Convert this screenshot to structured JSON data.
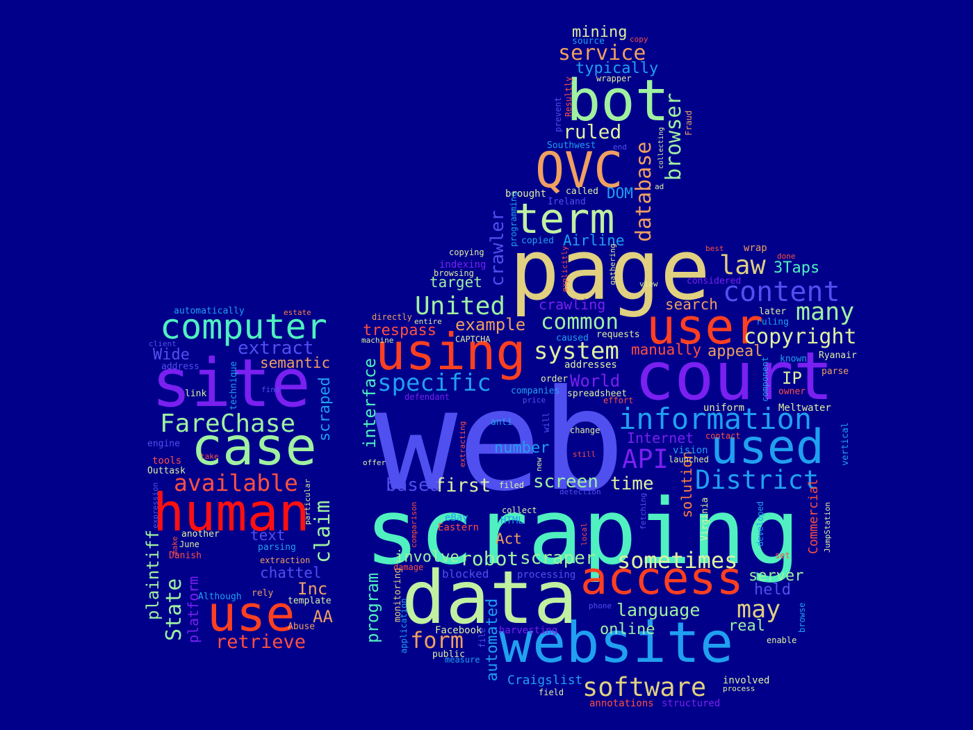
{
  "colors": {
    "background": "#00008b"
  },
  "words": [
    {
      "id": "web",
      "text": "web",
      "color": "#5050f0"
    },
    {
      "id": "scraping",
      "text": "scraping",
      "color": "#50f0c0"
    },
    {
      "id": "page",
      "text": "page",
      "color": "#e0d080"
    },
    {
      "id": "data",
      "text": "data",
      "color": "#c0f0a0"
    },
    {
      "id": "site",
      "text": "site",
      "color": "#7a20f0"
    },
    {
      "id": "court",
      "text": "court",
      "color": "#7a20f0"
    },
    {
      "id": "website",
      "text": "website",
      "color": "#20a0f0"
    },
    {
      "id": "bot",
      "text": "bot",
      "color": "#a0f0a0"
    },
    {
      "id": "human",
      "text": "human",
      "color": "#ff1010"
    },
    {
      "id": "case",
      "text": "case",
      "color": "#a0f0a0"
    },
    {
      "id": "use",
      "text": "use",
      "color": "#ff4020"
    },
    {
      "id": "using",
      "text": "using",
      "color": "#ff4020"
    },
    {
      "id": "user",
      "text": "user",
      "color": "#ff4020"
    },
    {
      "id": "access",
      "text": "access",
      "color": "#ff4020"
    },
    {
      "id": "used",
      "text": "used",
      "color": "#20a0f0"
    },
    {
      "id": "QVC",
      "text": "QVC",
      "color": "#f0a060"
    },
    {
      "id": "term",
      "text": "term",
      "color": "#c0f0a0"
    },
    {
      "id": "computer",
      "text": "computer",
      "color": "#50f0c0"
    },
    {
      "id": "information",
      "text": "information",
      "color": "#20a0f0"
    },
    {
      "id": "software",
      "text": "software",
      "color": "#e0d080"
    },
    {
      "id": "content",
      "text": "content",
      "color": "#5050f0"
    },
    {
      "id": "District",
      "text": "District",
      "color": "#20a0f0"
    },
    {
      "id": "United",
      "text": "United",
      "color": "#a0f0a0"
    },
    {
      "id": "specific",
      "text": "specific",
      "color": "#20a0f0"
    },
    {
      "id": "FareChase",
      "text": "FareChase",
      "color": "#a0f0a0"
    },
    {
      "id": "available",
      "text": "available",
      "color": "#ff5040"
    },
    {
      "id": "API",
      "text": "API",
      "color": "#7a20f0"
    },
    {
      "id": "law",
      "text": "law",
      "color": "#e0d080"
    },
    {
      "id": "many",
      "text": "many",
      "color": "#a0f0a0"
    },
    {
      "id": "system",
      "text": "system",
      "color": "#e0f0a0"
    },
    {
      "id": "copyright",
      "text": "copyright",
      "color": "#e0f0a0"
    },
    {
      "id": "sometimes",
      "text": "sometimes",
      "color": "#e0f0a0"
    },
    {
      "id": "may",
      "text": "may",
      "color": "#e0d080"
    },
    {
      "id": "common",
      "text": "common",
      "color": "#a0f0a0"
    },
    {
      "id": "database",
      "text": "database",
      "color": "#f0a060"
    },
    {
      "id": "browser",
      "text": "browser",
      "color": "#a0f0a0"
    },
    {
      "id": "crawler",
      "text": "crawler",
      "color": "#5050f0"
    },
    {
      "id": "claim",
      "text": "claim",
      "color": "#a0f0a0"
    },
    {
      "id": "State",
      "text": "State",
      "color": "#a0f0a0"
    },
    {
      "id": "retrieve",
      "text": "retrieve",
      "color": "#ff5040"
    },
    {
      "id": "extract",
      "text": "extract",
      "color": "#5050f0"
    },
    {
      "id": "semantic",
      "text": "semantic",
      "color": "#f0a060"
    },
    {
      "id": "scraped",
      "text": "scraped",
      "color": "#20a0f0"
    },
    {
      "id": "plaintiff",
      "text": "plaintiff",
      "color": "#a0f0a0"
    },
    {
      "id": "platform",
      "text": "platform",
      "color": "#7a20f0"
    },
    {
      "id": "Wide",
      "text": "Wide",
      "color": "#5050f0"
    },
    {
      "id": "text",
      "text": "text",
      "color": "#5050f0"
    },
    {
      "id": "chattel",
      "text": "chattel",
      "color": "#5050f0"
    },
    {
      "id": "Inc",
      "text": "Inc",
      "color": "#f0a060"
    },
    {
      "id": "AA",
      "text": "AA",
      "color": "#f0a060"
    },
    {
      "id": "service",
      "text": "service",
      "color": "#f0a060"
    },
    {
      "id": "mining",
      "text": "mining",
      "color": "#e0f0a0"
    },
    {
      "id": "typically",
      "text": "typically",
      "color": "#20a0f0"
    },
    {
      "id": "ruled",
      "text": "ruled",
      "color": "#e0f0a0"
    },
    {
      "id": "DOM",
      "text": "DOM",
      "color": "#20a0f0"
    },
    {
      "id": "Airline",
      "text": "Airline",
      "color": "#20a0f0"
    },
    {
      "id": "example",
      "text": "example",
      "color": "#f0a060"
    },
    {
      "id": "trespass",
      "text": "trespass",
      "color": "#ff5040"
    },
    {
      "id": "target",
      "text": "target",
      "color": "#a0f0a0"
    },
    {
      "id": "crawling",
      "text": "crawling",
      "color": "#7a20f0"
    },
    {
      "id": "search",
      "text": "search",
      "color": "#f0a060"
    },
    {
      "id": "3Taps",
      "text": "3Taps",
      "color": "#50f0c0"
    },
    {
      "id": "manually",
      "text": "manually",
      "color": "#ff5040"
    },
    {
      "id": "appeal",
      "text": "appeal",
      "color": "#f0a060"
    },
    {
      "id": "World",
      "text": "World",
      "color": "#7a20f0"
    },
    {
      "id": "Internet",
      "text": "Internet",
      "color": "#7a20f0"
    },
    {
      "id": "IP",
      "text": "IP",
      "color": "#e0f0a0"
    },
    {
      "id": "interface",
      "text": "interface",
      "color": "#50f0c0"
    },
    {
      "id": "number",
      "text": "number",
      "color": "#20a0f0"
    },
    {
      "id": "first",
      "text": "first",
      "color": "#e0f0a0"
    },
    {
      "id": "based",
      "text": "based",
      "color": "#5050f0"
    },
    {
      "id": "screen",
      "text": "screen",
      "color": "#a0f0a0"
    },
    {
      "id": "time",
      "text": "time",
      "color": "#e0f0a0"
    },
    {
      "id": "solution",
      "text": "solution",
      "color": "#ff8040"
    },
    {
      "id": "robot",
      "text": "robot",
      "color": "#a0f0a0"
    },
    {
      "id": "scraper",
      "text": "scraper",
      "color": "#a0f0a0"
    },
    {
      "id": "involve",
      "text": "involve",
      "color": "#a0f0a0"
    },
    {
      "id": "Act",
      "text": "Act",
      "color": "#f0a060"
    },
    {
      "id": "program",
      "text": "program",
      "color": "#50f0c0"
    },
    {
      "id": "form",
      "text": "form",
      "color": "#f0a060"
    },
    {
      "id": "automated",
      "text": "automated",
      "color": "#20a0f0"
    },
    {
      "id": "language",
      "text": "language",
      "color": "#a0f0a0"
    },
    {
      "id": "online",
      "text": "online",
      "color": "#a0f0a0"
    },
    {
      "id": "real",
      "text": "real",
      "color": "#a0f0a0"
    },
    {
      "id": "server",
      "text": "server",
      "color": "#a0f0a0"
    },
    {
      "id": "held",
      "text": "held",
      "color": "#5050f0"
    },
    {
      "id": "Commercial",
      "text": "Commercial",
      "color": "#ff5040"
    },
    {
      "id": "Craigslist",
      "text": "Craigslist",
      "color": "#20a0f0"
    },
    {
      "id": "Facebook",
      "text": "Facebook",
      "color": "#e0f0a0"
    },
    {
      "id": "harvesting",
      "text": "harvesting",
      "color": "#7a20f0"
    },
    {
      "id": "blocked",
      "text": "blocked",
      "color": "#5050f0"
    },
    {
      "id": "processing",
      "text": "processing",
      "color": "#5050f0"
    },
    {
      "id": "eBay",
      "text": "eBay",
      "color": "#20a0f0"
    },
    {
      "id": "Eastern",
      "text": "Eastern",
      "color": "#ff5040"
    },
    {
      "id": "HTML",
      "text": "HTML",
      "color": "#20a0f0"
    },
    {
      "id": "collect",
      "text": "collect",
      "color": "#e0f0a0"
    },
    {
      "id": "monitoring",
      "text": "monitoring",
      "color": "#e0d080"
    },
    {
      "id": "application",
      "text": "application",
      "color": "#20a0f0"
    },
    {
      "id": "public",
      "text": "public",
      "color": "#e0f0a0"
    },
    {
      "id": "measure",
      "text": "measure",
      "color": "#20a0f0"
    },
    {
      "id": "file",
      "text": "file",
      "color": "#5050f0"
    },
    {
      "id": "field",
      "text": "field",
      "color": "#e0f0a0"
    },
    {
      "id": "annotations",
      "text": "annotations",
      "color": "#ff5040"
    },
    {
      "id": "structured",
      "text": "structured",
      "color": "#7a20f0"
    },
    {
      "id": "involved",
      "text": "involved",
      "color": "#e0f0a0"
    },
    {
      "id": "process",
      "text": "process",
      "color": "#e0f0a0"
    },
    {
      "id": "enable",
      "text": "enable",
      "color": "#e0f0a0"
    },
    {
      "id": "browse",
      "text": "browse",
      "color": "#20a0f0"
    },
    {
      "id": "Virginia",
      "text": "Virginia",
      "color": "#e0f0a0"
    },
    {
      "id": "developed",
      "text": "developed",
      "color": "#20a0f0"
    },
    {
      "id": "JumpStation",
      "text": "JumpStation",
      "color": "#e0f0a0"
    },
    {
      "id": "set",
      "text": "set",
      "color": "#ff5040"
    },
    {
      "id": "vertical",
      "text": "vertical",
      "color": "#20a0f0"
    },
    {
      "id": "vision",
      "text": "vision",
      "color": "#20a0f0"
    },
    {
      "id": "launched",
      "text": "launched",
      "color": "#e0f0a0"
    },
    {
      "id": "contact",
      "text": "contact",
      "color": "#ff5040"
    },
    {
      "id": "uniform",
      "text": "uniform",
      "color": "#e0f0a0"
    },
    {
      "id": "Meltwater",
      "text": "Meltwater",
      "color": "#e0f0a0"
    },
    {
      "id": "component",
      "text": "component",
      "color": "#20a0f0"
    },
    {
      "id": "owner",
      "text": "owner",
      "color": "#ff5040"
    },
    {
      "id": "parse",
      "text": "parse",
      "color": "#f0a060"
    },
    {
      "id": "Ryanair",
      "text": "Ryanair",
      "color": "#e0f0a0"
    },
    {
      "id": "known",
      "text": "known",
      "color": "#20a0f0"
    },
    {
      "id": "later",
      "text": "later",
      "color": "#e0f0a0"
    },
    {
      "id": "ruling",
      "text": "ruling",
      "color": "#20a0f0"
    },
    {
      "id": "considered",
      "text": "considered",
      "color": "#7a20f0"
    },
    {
      "id": "view",
      "text": "view",
      "color": "#e0f0a0"
    },
    {
      "id": "wrap",
      "text": "wrap",
      "color": "#f0a060"
    },
    {
      "id": "done",
      "text": "done",
      "color": "#ff5040"
    },
    {
      "id": "best",
      "text": "best",
      "color": "#ff5040"
    },
    {
      "id": "requests",
      "text": "requests",
      "color": "#e0f0a0"
    },
    {
      "id": "addresses",
      "text": "addresses",
      "color": "#e0f0a0"
    },
    {
      "id": "spreadsheet",
      "text": "spreadsheet",
      "color": "#e0f0a0"
    },
    {
      "id": "effort",
      "text": "effort",
      "color": "#ff5040"
    },
    {
      "id": "order",
      "text": "order",
      "color": "#e0f0a0"
    },
    {
      "id": "companies",
      "text": "companies",
      "color": "#20a0f0"
    },
    {
      "id": "price",
      "text": "price",
      "color": "#5050f0"
    },
    {
      "id": "will",
      "text": "will",
      "color": "#5050f0"
    },
    {
      "id": "anti",
      "text": "anti",
      "color": "#20a0f0"
    },
    {
      "id": "change",
      "text": "change",
      "color": "#e0f0a0"
    },
    {
      "id": "still",
      "text": "still",
      "color": "#ff5040"
    },
    {
      "id": "new",
      "text": "new",
      "color": "#e0f0a0"
    },
    {
      "id": "filed",
      "text": "filed",
      "color": "#e0f0a0"
    },
    {
      "id": "detection",
      "text": "detection",
      "color": "#5050f0"
    },
    {
      "id": "local",
      "text": "local",
      "color": "#ff5040"
    },
    {
      "id": "fetching",
      "text": "fetching",
      "color": "#5050f0"
    },
    {
      "id": "phone",
      "text": "phone",
      "color": "#5050f0"
    },
    {
      "id": "offer",
      "text": "offer",
      "color": "#e0f0a0"
    },
    {
      "id": "extracting",
      "text": "extracting",
      "color": "#ff5040"
    },
    {
      "id": "comparison",
      "text": "comparison",
      "color": "#ff5040"
    },
    {
      "id": "damage",
      "text": "damage",
      "color": "#ff5040"
    },
    {
      "id": "defendant",
      "text": "defendant",
      "color": "#7a20f0"
    },
    {
      "id": "directly",
      "text": "directly",
      "color": "#f0a060"
    },
    {
      "id": "entire",
      "text": "entire",
      "color": "#e0f0a0"
    },
    {
      "id": "machine",
      "text": "machine",
      "color": "#e0f0a0"
    },
    {
      "id": "caused",
      "text": "caused",
      "color": "#20a0f0"
    },
    {
      "id": "CAPTCHA",
      "text": "CAPTCHA",
      "color": "#e0f0a0"
    },
    {
      "id": "copying",
      "text": "copying",
      "color": "#e0f0a0"
    },
    {
      "id": "indexing",
      "text": "indexing",
      "color": "#7a20f0"
    },
    {
      "id": "browsing",
      "text": "browsing",
      "color": "#e0f0a0"
    },
    {
      "id": "programming",
      "text": "programming",
      "color": "#20a0f0"
    },
    {
      "id": "explicitly",
      "text": "explicitly",
      "color": "#ff5040"
    },
    {
      "id": "gathering",
      "text": "gathering",
      "color": "#e0f0a0"
    },
    {
      "id": "copied",
      "text": "copied",
      "color": "#20a0f0"
    },
    {
      "id": "brought",
      "text": "brought",
      "color": "#e0f0a0"
    },
    {
      "id": "called",
      "text": "called",
      "color": "#e0f0a0"
    },
    {
      "id": "Ireland",
      "text": "Ireland",
      "color": "#5050f0"
    },
    {
      "id": "ad",
      "text": "ad",
      "color": "#e0f0a0"
    },
    {
      "id": "Southwest",
      "text": "Southwest",
      "color": "#20a0f0"
    },
    {
      "id": "end",
      "text": "end",
      "color": "#5050f0"
    },
    {
      "id": "collecting",
      "text": "collecting",
      "color": "#e0f0a0"
    },
    {
      "id": "Fraud",
      "text": "Fraud",
      "color": "#f0a060"
    },
    {
      "id": "prevent",
      "text": "prevent",
      "color": "#5050f0"
    },
    {
      "id": "Resultly",
      "text": "Resultly",
      "color": "#ff5040"
    },
    {
      "id": "wrapper",
      "text": "wrapper",
      "color": "#e0f0a0"
    },
    {
      "id": "source",
      "text": "source",
      "color": "#20a0f0"
    },
    {
      "id": "copy",
      "text": "copy",
      "color": "#ff5040"
    },
    {
      "id": "automatically",
      "text": "automatically",
      "color": "#20a0f0"
    },
    {
      "id": "estate",
      "text": "estate",
      "color": "#ff8040"
    },
    {
      "id": "client",
      "text": "client",
      "color": "#5050f0"
    },
    {
      "id": "address",
      "text": "address",
      "color": "#5050f0"
    },
    {
      "id": "technique",
      "text": "technique",
      "color": "#20a0f0"
    },
    {
      "id": "link",
      "text": "link",
      "color": "#e0f0a0"
    },
    {
      "id": "find",
      "text": "find",
      "color": "#5050f0"
    },
    {
      "id": "engine",
      "text": "engine",
      "color": "#5050f0"
    },
    {
      "id": "tools",
      "text": "tools",
      "color": "#ff5040"
    },
    {
      "id": "take",
      "text": "take",
      "color": "#ff5040"
    },
    {
      "id": "Outtask",
      "text": "Outtask",
      "color": "#e0f0a0"
    },
    {
      "id": "expression",
      "text": "expression",
      "color": "#5050f0"
    },
    {
      "id": "particular",
      "text": "particular",
      "color": "#e0f0a0"
    },
    {
      "id": "another",
      "text": "another",
      "color": "#e0f0a0"
    },
    {
      "id": "June",
      "text": "June",
      "color": "#e0f0a0"
    },
    {
      "id": "make",
      "text": "make",
      "color": "#ff5040"
    },
    {
      "id": "Danish",
      "text": "Danish",
      "color": "#ff5040"
    },
    {
      "id": "parsing",
      "text": "parsing",
      "color": "#20a0f0"
    },
    {
      "id": "extraction",
      "text": "extraction",
      "color": "#f0a060"
    },
    {
      "id": "Although",
      "text": "Although",
      "color": "#20a0f0"
    },
    {
      "id": "rely",
      "text": "rely",
      "color": "#f0a060"
    },
    {
      "id": "template",
      "text": "template",
      "color": "#e0f0a0"
    },
    {
      "id": "Abuse",
      "text": "Abuse",
      "color": "#f0a060"
    }
  ]
}
